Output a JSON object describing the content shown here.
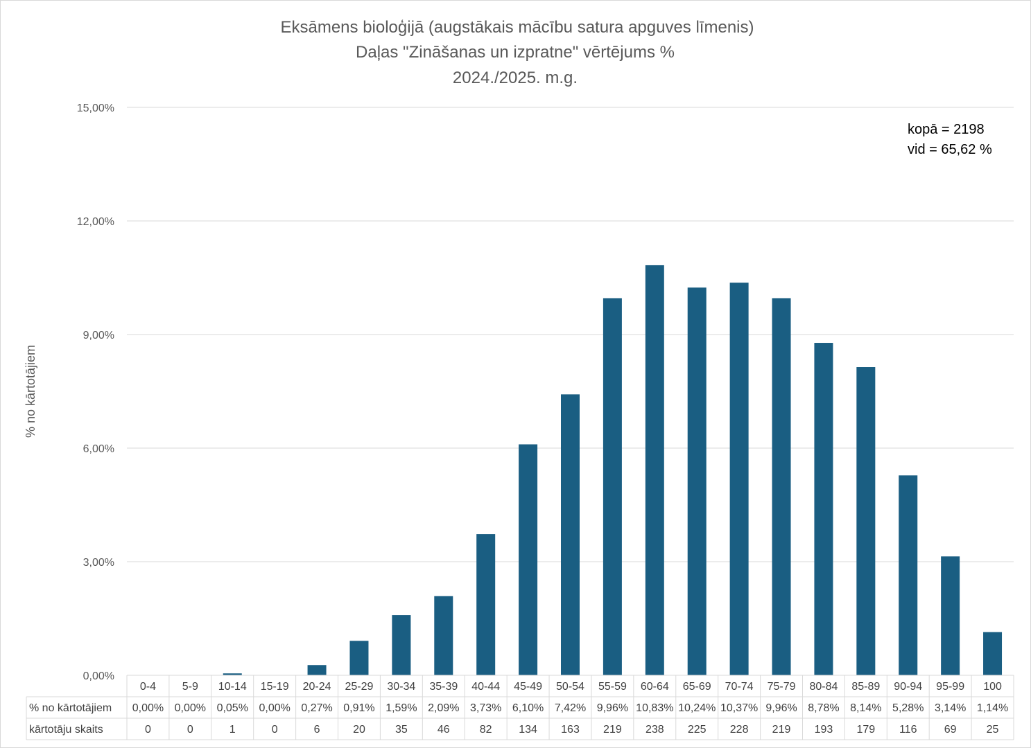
{
  "chart_data": {
    "type": "bar",
    "title_lines": [
      "Eksāmens bioloģijā (augstākais mācību satura apguves līmenis)",
      "Daļas \"Zināšanas un izpratne\" vērtējums %",
      "2024./2025. m.g."
    ],
    "ylabel": "% no kārtotājiem",
    "ylim": [
      0,
      15
    ],
    "yticks": [
      0,
      3,
      6,
      9,
      12,
      15
    ],
    "ytick_labels": [
      "0,00%",
      "3,00%",
      "6,00%",
      "9,00%",
      "12,00%",
      "15,00%"
    ],
    "grid": true,
    "categories": [
      "0-4",
      "5-9",
      "10-14",
      "15-19",
      "20-24",
      "25-29",
      "30-34",
      "35-39",
      "40-44",
      "45-49",
      "50-54",
      "55-59",
      "60-64",
      "65-69",
      "70-74",
      "75-79",
      "80-84",
      "85-89",
      "90-94",
      "95-99",
      "100"
    ],
    "series": [
      {
        "name": "% no kārtotājiem",
        "values": [
          0.0,
          0.0,
          0.05,
          0.0,
          0.27,
          0.91,
          1.59,
          2.09,
          3.73,
          6.1,
          7.42,
          9.96,
          10.83,
          10.24,
          10.37,
          9.96,
          8.78,
          8.14,
          5.28,
          3.14,
          1.14
        ],
        "labels": [
          "0,00%",
          "0,00%",
          "0,05%",
          "0,00%",
          "0,27%",
          "0,91%",
          "1,59%",
          "2,09%",
          "3,73%",
          "6,10%",
          "7,42%",
          "9,96%",
          "10,83%",
          "10,24%",
          "10,37%",
          "9,96%",
          "8,78%",
          "8,14%",
          "5,28%",
          "3,14%",
          "1,14%"
        ],
        "color": "#1a5e82"
      }
    ],
    "table_rows": [
      {
        "header": "% no kārtotājiem",
        "row": 0
      },
      {
        "header": "kārtotāju skaits",
        "values": [
          "0",
          "0",
          "1",
          "0",
          "6",
          "20",
          "35",
          "46",
          "82",
          "134",
          "163",
          "219",
          "238",
          "225",
          "228",
          "219",
          "193",
          "179",
          "116",
          "69",
          "25"
        ]
      }
    ],
    "annotations": [
      "kopā = 2198",
      "vid = 65,62 %"
    ]
  }
}
